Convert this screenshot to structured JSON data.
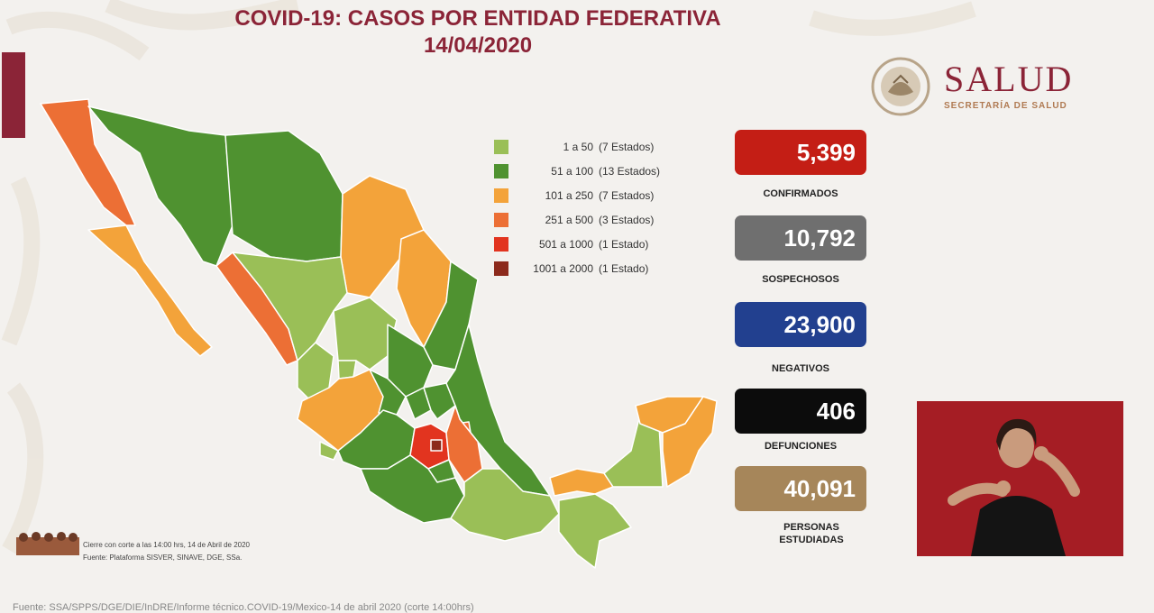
{
  "header": {
    "title_line1": "COVID-19: CASOS POR ENTIDAD FEDERATIVA",
    "title_line2": "14/04/2020"
  },
  "logo": {
    "name": "SALUD",
    "subtitle": "SECRETARÍA DE SALUD"
  },
  "legend": [
    {
      "range": "1 a 50",
      "count": "(7 Estados)",
      "color": "#9abf57"
    },
    {
      "range": "51 a 100",
      "count": "(13 Estados)",
      "color": "#4f9230"
    },
    {
      "range": "101 a 250",
      "count": "(7 Estados)",
      "color": "#f3a33a"
    },
    {
      "range": "251 a 500",
      "count": "(3 Estados)",
      "color": "#ec6f35"
    },
    {
      "range": "501 a 1000",
      "count": "(1 Estado)",
      "color": "#e2341f"
    },
    {
      "range": "1001 a 2000",
      "count": "(1 Estado)",
      "color": "#8c2a1c"
    }
  ],
  "stats": [
    {
      "value": "5,399",
      "label": "CONFIRMADOS",
      "color": "#c41e15"
    },
    {
      "value": "10,792",
      "label": "SOSPECHOSOS",
      "color": "#6f6f6f"
    },
    {
      "value": "23,900",
      "label": "NEGATIVOS",
      "color": "#22408f"
    },
    {
      "value": "406",
      "label": "DEFUNCIONES",
      "color": "#0c0c0c"
    },
    {
      "value": "40,091",
      "label": "PERSONAS ESTUDIADAS",
      "color": "#a6865a"
    }
  ],
  "footnotes": {
    "cierre": "Cierre con corte a las 14:00 hrs, 14 de Abril de 2020",
    "fuente": "Fuente: Plataforma SISVER, SINAVE, DGE, SSa."
  },
  "source": "Fuente: SSA/SPPS/DGE/DIE/InDRE/Informe técnico.COVID-19/Mexico-14 de abril 2020 (corte 14:00hrs)"
}
